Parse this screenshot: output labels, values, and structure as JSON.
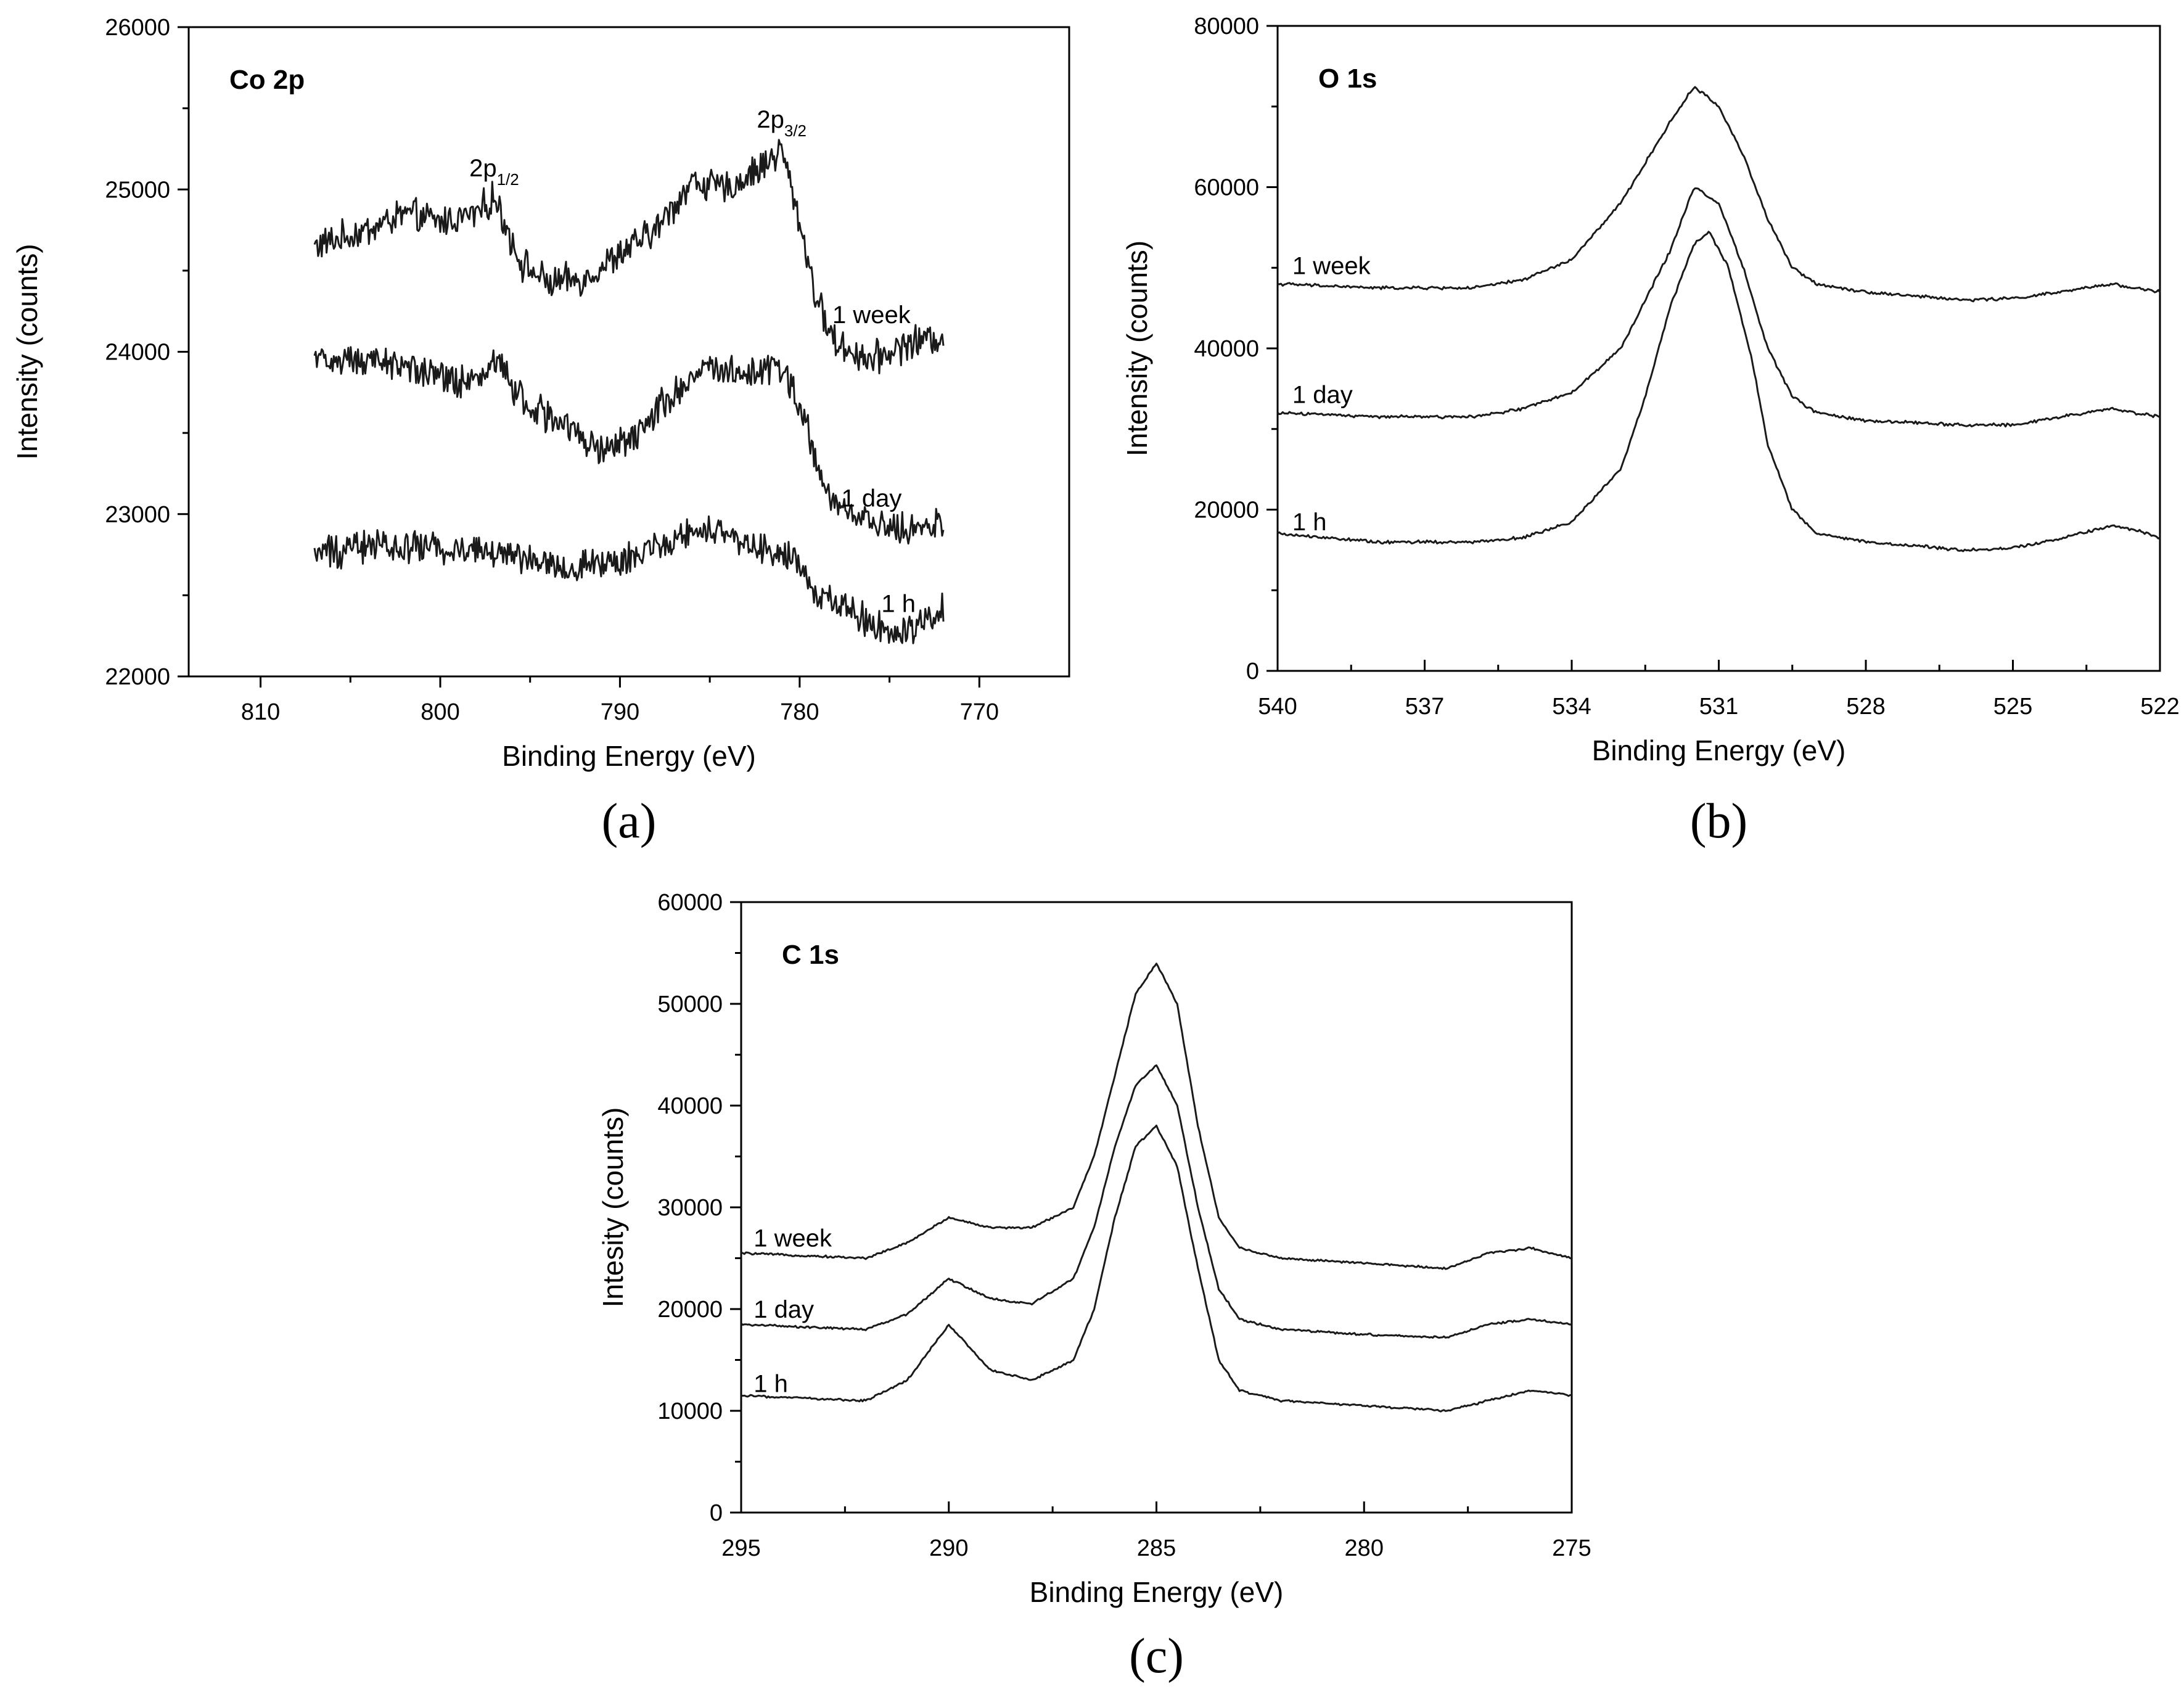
{
  "chart_data": [
    {
      "type": "line",
      "panel_label": "(a)",
      "title": "Co 2p",
      "xlabel": "Binding Energy (eV)",
      "ylabel": "Intensity (counts)",
      "xlim": [
        814,
        765
      ],
      "ylim": [
        22000,
        26000
      ],
      "x_inverted": true,
      "xticks": [
        810,
        800,
        790,
        780,
        770
      ],
      "yticks": [
        22000,
        23000,
        24000,
        25000,
        26000
      ],
      "grid": false,
      "noise": 80,
      "annotations": [
        {
          "base": "2p",
          "sub": "1/2",
          "x": 797,
          "y": 25080
        },
        {
          "base": "2p",
          "sub": "3/2",
          "x": 781,
          "y": 25380
        }
      ],
      "series": [
        {
          "name": "1 week",
          "label_x": 776,
          "label_y": 24230,
          "x": [
            807,
            804,
            802,
            800,
            798,
            797,
            795.5,
            794,
            792,
            790,
            788,
            786,
            784,
            782,
            781,
            780,
            779,
            778,
            776,
            774,
            772
          ],
          "values": [
            24650,
            24750,
            24850,
            24800,
            24850,
            24950,
            24550,
            24420,
            24450,
            24600,
            24750,
            25050,
            25000,
            25150,
            25250,
            24800,
            24300,
            24050,
            23950,
            24050,
            24100
          ]
        },
        {
          "name": "1 day",
          "label_x": 776,
          "label_y": 23100,
          "x": [
            807,
            804,
            802,
            800,
            798,
            797,
            795,
            793,
            791,
            789,
            787,
            785,
            783,
            781,
            780,
            779,
            778,
            776,
            774,
            772
          ],
          "values": [
            23950,
            23950,
            23900,
            23850,
            23800,
            23950,
            23650,
            23550,
            23400,
            23500,
            23750,
            23900,
            23850,
            23900,
            23700,
            23300,
            23050,
            22950,
            22900,
            22950
          ]
        },
        {
          "name": "1 h",
          "label_x": 774.5,
          "label_y": 22450,
          "x": [
            807,
            804,
            800,
            796,
            793,
            790,
            787,
            785,
            782,
            780,
            779,
            777,
            775,
            773,
            772
          ],
          "values": [
            22750,
            22800,
            22800,
            22750,
            22650,
            22700,
            22850,
            22900,
            22800,
            22700,
            22500,
            22400,
            22250,
            22350,
            22450
          ]
        }
      ]
    },
    {
      "type": "line",
      "panel_label": "(b)",
      "title": "O 1s",
      "xlabel": "Binding Energy (eV)",
      "ylabel": "Intensity (counts)",
      "xlim": [
        540,
        522
      ],
      "ylim": [
        0,
        80000
      ],
      "x_inverted": true,
      "xticks": [
        540,
        537,
        534,
        531,
        528,
        525,
        522
      ],
      "yticks": [
        0,
        20000,
        40000,
        60000,
        80000
      ],
      "grid": false,
      "noise": 150,
      "annotations": [],
      "series": [
        {
          "name": "1 week",
          "label_x": 539.7,
          "label_y": 50300,
          "x": [
            540,
            538,
            536,
            535,
            534,
            533,
            532,
            531.5,
            531,
            530.5,
            530,
            529.5,
            529,
            528,
            527,
            526,
            525,
            524,
            523,
            522.5,
            522
          ],
          "values": [
            48000,
            47500,
            47500,
            48500,
            51000,
            58000,
            68000,
            72500,
            70000,
            64000,
            56000,
            50000,
            48000,
            47000,
            46500,
            46000,
            46200,
            47000,
            48000,
            47500,
            47000
          ]
        },
        {
          "name": "1 day",
          "label_x": 539.7,
          "label_y": 34300,
          "x": [
            540,
            538,
            536,
            535,
            534,
            533,
            532,
            531.5,
            531,
            530.5,
            530,
            529.5,
            529,
            528,
            527,
            526,
            525,
            524,
            523,
            522.5,
            522
          ],
          "values": [
            32000,
            31500,
            31500,
            32500,
            34500,
            40000,
            52000,
            60000,
            58000,
            50000,
            40000,
            34000,
            32000,
            31000,
            30800,
            30500,
            30500,
            31500,
            32500,
            32000,
            31500
          ]
        },
        {
          "name": "1 h",
          "label_x": 539.7,
          "label_y": 18500,
          "x": [
            540,
            538,
            536,
            535,
            534,
            533,
            532.5,
            532,
            531.5,
            531.2,
            530.8,
            530.3,
            530,
            529.5,
            529,
            528,
            527,
            526,
            525,
            524,
            523,
            522.5,
            522
          ],
          "values": [
            17000,
            16000,
            16000,
            16500,
            18500,
            25000,
            34000,
            45000,
            53000,
            54500,
            50000,
            38000,
            28000,
            20000,
            17000,
            16000,
            15500,
            15000,
            15200,
            16500,
            18000,
            17500,
            16500
          ]
        }
      ]
    },
    {
      "type": "line",
      "panel_label": "(c)",
      "title": "C 1s",
      "xlabel": "Binding Energy (eV)",
      "ylabel": "Intesity (counts)",
      "xlim": [
        295,
        275
      ],
      "ylim": [
        0,
        60000
      ],
      "x_inverted": true,
      "xticks": [
        295,
        290,
        285,
        280,
        275
      ],
      "yticks": [
        0,
        10000,
        20000,
        30000,
        40000,
        50000,
        60000
      ],
      "grid": false,
      "noise": 80,
      "annotations": [],
      "series": [
        {
          "name": "1 week",
          "label_x": 294.7,
          "label_y": 27000,
          "x": [
            295,
            292,
            291,
            290,
            289,
            288,
            287,
            286.5,
            286,
            285.5,
            285,
            284.5,
            284,
            283.5,
            283,
            282,
            280,
            278,
            277,
            276,
            275
          ],
          "values": [
            25500,
            25000,
            26500,
            29000,
            28000,
            28000,
            30000,
            35000,
            43000,
            51000,
            54000,
            50000,
            38000,
            29000,
            26000,
            25000,
            24500,
            24000,
            25500,
            26000,
            25000
          ]
        },
        {
          "name": "1 day",
          "label_x": 294.7,
          "label_y": 20000,
          "x": [
            295,
            292,
            291,
            290,
            289,
            288,
            287,
            286.5,
            286,
            285.5,
            285,
            284.5,
            284,
            283.5,
            283,
            282,
            280,
            278,
            277,
            276,
            275
          ],
          "values": [
            18500,
            18000,
            19500,
            23000,
            21000,
            20500,
            23000,
            28000,
            36000,
            42000,
            44000,
            40000,
            30000,
            22000,
            19000,
            18000,
            17500,
            17200,
            18500,
            19000,
            18500
          ]
        },
        {
          "name": "1 h",
          "label_x": 294.7,
          "label_y": 12700,
          "x": [
            295,
            292,
            291,
            290,
            289,
            288,
            287,
            286.5,
            286,
            285.5,
            285,
            284.5,
            284,
            283.5,
            283,
            282,
            280,
            278,
            277,
            276,
            275
          ],
          "values": [
            11500,
            11000,
            13000,
            18500,
            14000,
            13000,
            15000,
            20000,
            29000,
            36000,
            38000,
            34000,
            24000,
            15000,
            12000,
            11000,
            10500,
            10000,
            11000,
            12000,
            11500
          ]
        }
      ]
    }
  ]
}
